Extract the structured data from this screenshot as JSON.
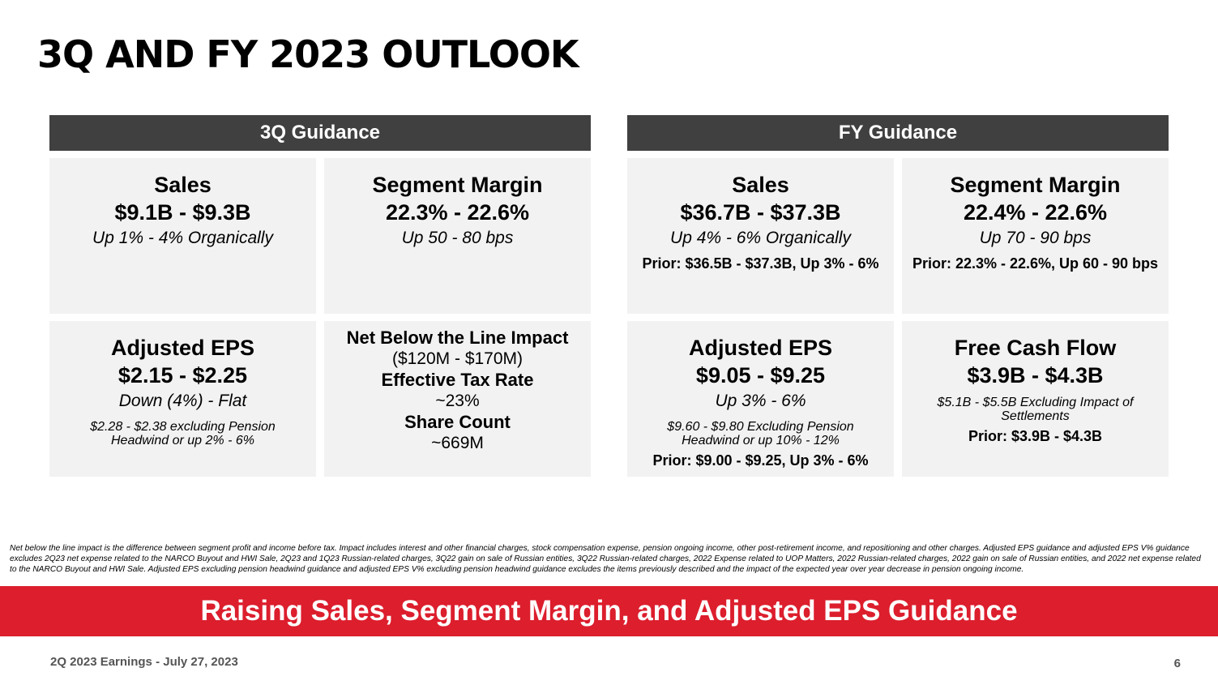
{
  "title": "3Q AND FY 2023 OUTLOOK",
  "q3": {
    "header": "3Q Guidance",
    "sales": {
      "heading": "Sales",
      "value": "$9.1B - $9.3B",
      "sub": "Up 1% - 4% Organically"
    },
    "segment_margin": {
      "heading": "Segment Margin",
      "value": "22.3% - 22.6%",
      "sub": "Up 50 - 80 bps"
    },
    "adjusted_eps": {
      "heading": "Adjusted EPS",
      "value": "$2.15 - $2.25",
      "sub": "Down (4%) - Flat",
      "note": "$2.28 - $2.38 excluding Pension Headwind or up 2% - 6%"
    },
    "other": {
      "nbl_heading": "Net Below the Line Impact",
      "nbl_value": "($120M - $170M)",
      "tax_heading": "Effective Tax Rate",
      "tax_value": "~23%",
      "share_heading": "Share Count",
      "share_value": "~669M"
    }
  },
  "fy": {
    "header": "FY Guidance",
    "sales": {
      "heading": "Sales",
      "value": "$36.7B - $37.3B",
      "sub": "Up 4% - 6% Organically",
      "prior": "Prior: $36.5B - $37.3B, Up 3% - 6%"
    },
    "segment_margin": {
      "heading": "Segment Margin",
      "value": "22.4% - 22.6%",
      "sub": "Up 70 - 90 bps",
      "prior": "Prior: 22.3% - 22.6%, Up 60 - 90 bps"
    },
    "adjusted_eps": {
      "heading": "Adjusted EPS",
      "value": "$9.05 - $9.25",
      "sub": "Up 3% - 6%",
      "note": "$9.60 - $9.80 Excluding Pension Headwind or up 10% - 12%",
      "prior": "Prior: $9.00 - $9.25, Up 3% - 6%"
    },
    "fcf": {
      "heading": "Free Cash Flow",
      "value": "$3.9B - $4.3B",
      "note": "$5.1B - $5.5B Excluding Impact of Settlements",
      "prior": "Prior: $3.9B - $4.3B"
    }
  },
  "footnote": "Net below the line impact is the difference between segment profit and income before tax. Impact includes interest and other financial charges, stock compensation expense, pension ongoing income, other post-retirement income, and repositioning and other charges. Adjusted EPS guidance and adjusted EPS V% guidance excludes 2Q23 net expense related to the NARCO Buyout and HWI Sale, 2Q23 and 1Q23 Russian-related charges, 3Q22 gain on sale of Russian entities, 3Q22 Russian-related charges, 2022 Expense related to UOP Matters, 2022 Russian-related charges, 2022 gain on sale of Russian entities, and 2022 net expense related to the NARCO Buyout and HWI Sale. Adjusted EPS excluding pension headwind guidance and adjusted EPS V% excluding pension headwind guidance excludes the items previously described and the impact of the expected year over year decrease in pension ongoing income.",
  "banner": "Raising Sales, Segment Margin, and Adjusted EPS Guidance",
  "footer": {
    "left": "2Q 2023 Earnings - July 27, 2023",
    "page": "6"
  },
  "colors": {
    "header_bg": "#404040",
    "card_bg": "#f2f2f2",
    "banner_bg": "#dc1e2d"
  }
}
